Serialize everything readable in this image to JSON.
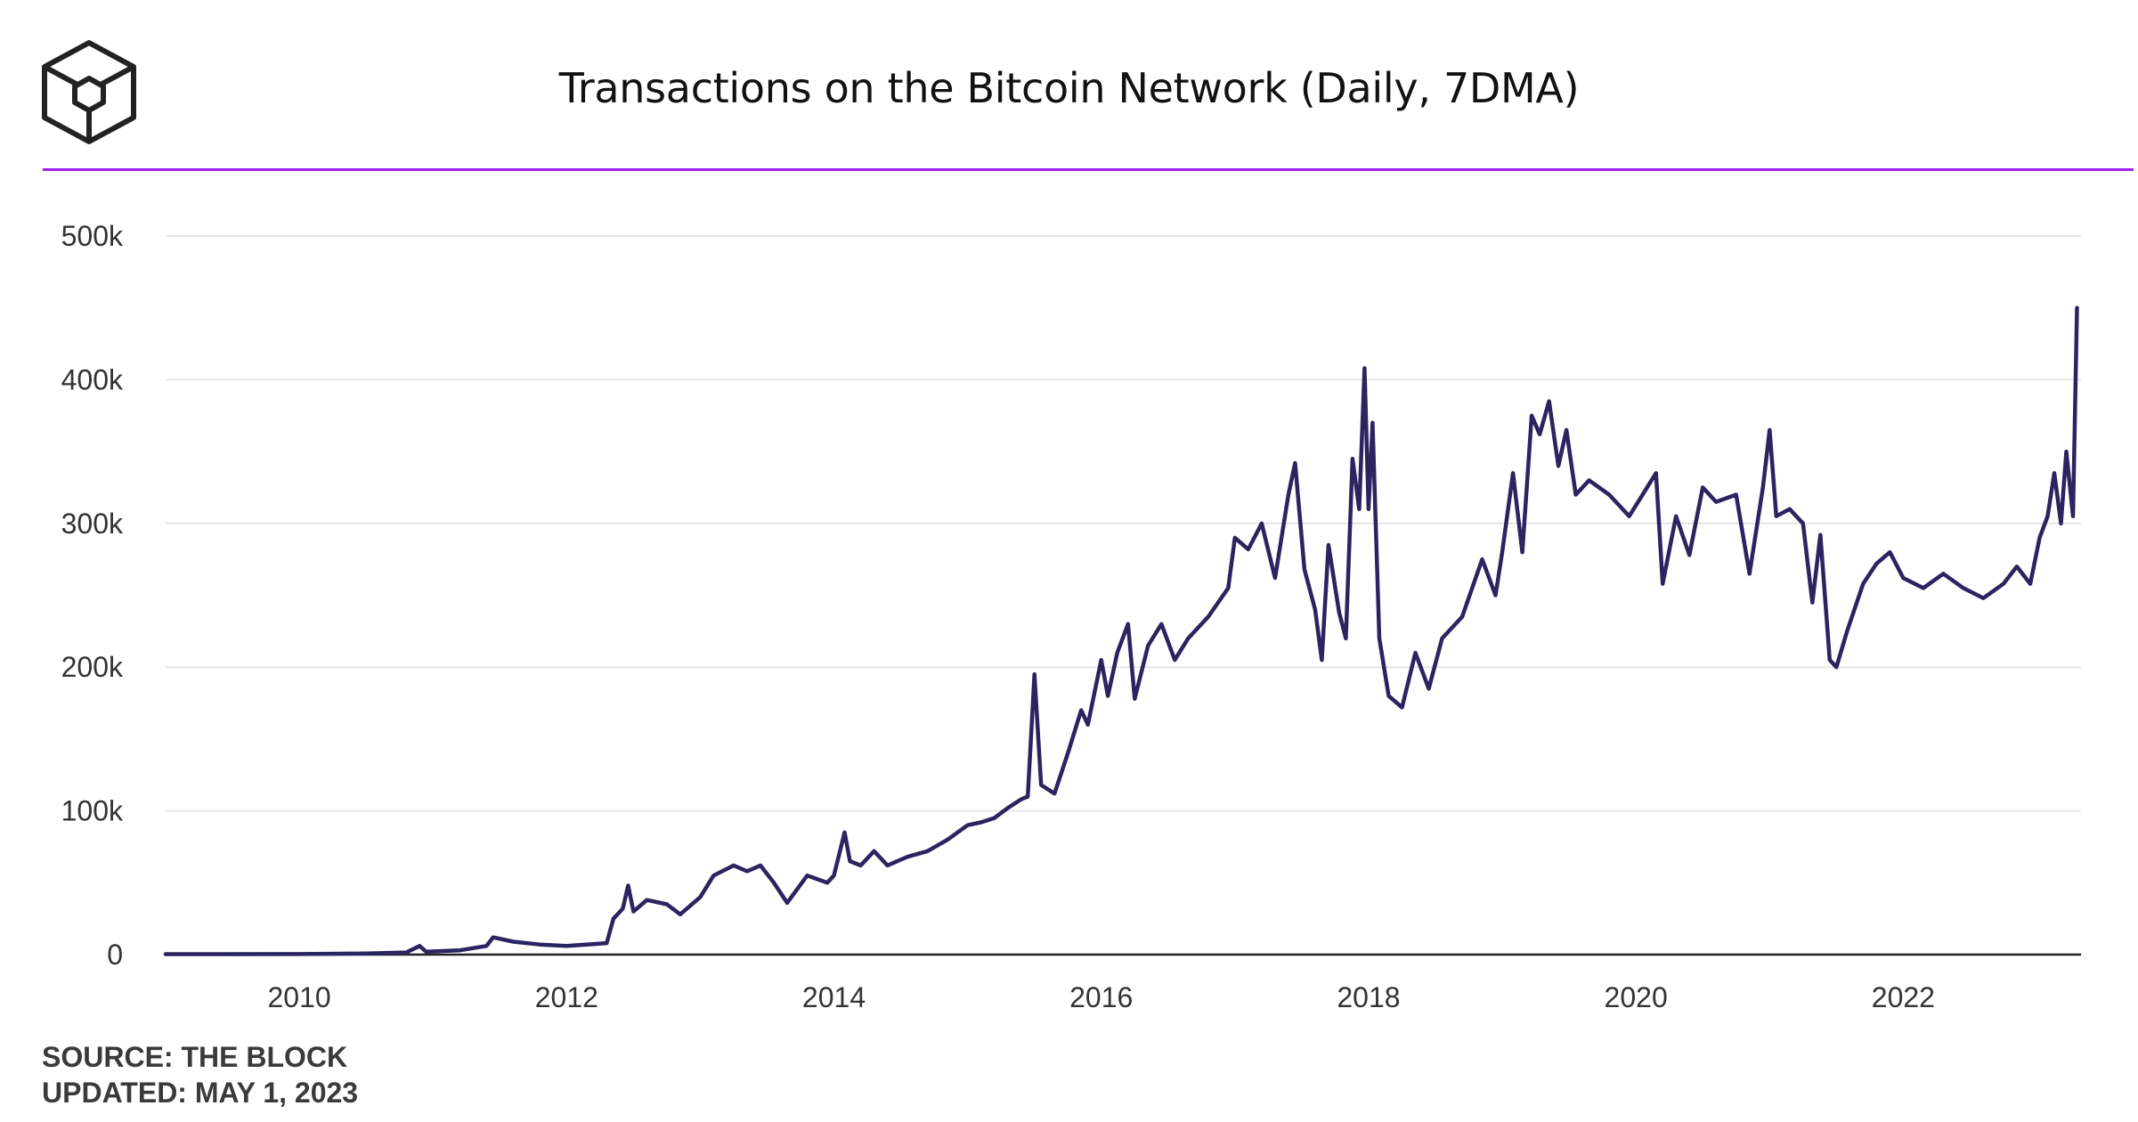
{
  "header": {
    "title": "Transactions on the Bitcoin Network (Daily, 7DMA)",
    "accent_color": "#a020f0",
    "logo_icon": "cube-icon"
  },
  "footer": {
    "source": "SOURCE: THE BLOCK",
    "updated": "UPDATED: MAY 1, 2023"
  },
  "chart_data": {
    "type": "line",
    "title": "Transactions on the Bitcoin Network (Daily, 7DMA)",
    "xlabel": "",
    "ylabel": "",
    "xlim": [
      2009.0,
      2023.33
    ],
    "ylim": [
      0,
      500000
    ],
    "grid": true,
    "line_color": "#2a2460",
    "y_ticks": [
      {
        "value": 0,
        "label": "0"
      },
      {
        "value": 100000,
        "label": "100k"
      },
      {
        "value": 200000,
        "label": "200k"
      },
      {
        "value": 300000,
        "label": "300k"
      },
      {
        "value": 400000,
        "label": "400k"
      },
      {
        "value": 500000,
        "label": "500k"
      }
    ],
    "x_ticks": [
      {
        "value": 2010,
        "label": "2010"
      },
      {
        "value": 2012,
        "label": "2012"
      },
      {
        "value": 2014,
        "label": "2014"
      },
      {
        "value": 2016,
        "label": "2016"
      },
      {
        "value": 2018,
        "label": "2018"
      },
      {
        "value": 2020,
        "label": "2020"
      },
      {
        "value": 2022,
        "label": "2022"
      }
    ],
    "series": [
      {
        "name": "Transactions (7DMA)",
        "points": [
          [
            2009.0,
            300
          ],
          [
            2010.0,
            400
          ],
          [
            2010.5,
            800
          ],
          [
            2010.8,
            1500
          ],
          [
            2010.9,
            6000
          ],
          [
            2010.95,
            2000
          ],
          [
            2011.2,
            3000
          ],
          [
            2011.4,
            6000
          ],
          [
            2011.45,
            12000
          ],
          [
            2011.6,
            9000
          ],
          [
            2011.8,
            7000
          ],
          [
            2012.0,
            6000
          ],
          [
            2012.15,
            7000
          ],
          [
            2012.3,
            8000
          ],
          [
            2012.35,
            25000
          ],
          [
            2012.42,
            32000
          ],
          [
            2012.46,
            48000
          ],
          [
            2012.5,
            30000
          ],
          [
            2012.6,
            38000
          ],
          [
            2012.75,
            35000
          ],
          [
            2012.85,
            28000
          ],
          [
            2013.0,
            40000
          ],
          [
            2013.1,
            55000
          ],
          [
            2013.25,
            62000
          ],
          [
            2013.35,
            58000
          ],
          [
            2013.45,
            62000
          ],
          [
            2013.55,
            50000
          ],
          [
            2013.65,
            36000
          ],
          [
            2013.8,
            55000
          ],
          [
            2013.95,
            50000
          ],
          [
            2014.0,
            55000
          ],
          [
            2014.08,
            85000
          ],
          [
            2014.12,
            65000
          ],
          [
            2014.2,
            62000
          ],
          [
            2014.3,
            72000
          ],
          [
            2014.4,
            62000
          ],
          [
            2014.55,
            68000
          ],
          [
            2014.7,
            72000
          ],
          [
            2014.85,
            80000
          ],
          [
            2015.0,
            90000
          ],
          [
            2015.1,
            92000
          ],
          [
            2015.2,
            95000
          ],
          [
            2015.3,
            102000
          ],
          [
            2015.4,
            108000
          ],
          [
            2015.45,
            110000
          ],
          [
            2015.5,
            195000
          ],
          [
            2015.55,
            118000
          ],
          [
            2015.65,
            112000
          ],
          [
            2015.75,
            140000
          ],
          [
            2015.85,
            170000
          ],
          [
            2015.9,
            160000
          ],
          [
            2016.0,
            205000
          ],
          [
            2016.05,
            180000
          ],
          [
            2016.12,
            210000
          ],
          [
            2016.2,
            230000
          ],
          [
            2016.25,
            178000
          ],
          [
            2016.35,
            215000
          ],
          [
            2016.45,
            230000
          ],
          [
            2016.55,
            205000
          ],
          [
            2016.65,
            220000
          ],
          [
            2016.8,
            235000
          ],
          [
            2016.95,
            255000
          ],
          [
            2017.0,
            290000
          ],
          [
            2017.1,
            282000
          ],
          [
            2017.2,
            300000
          ],
          [
            2017.3,
            262000
          ],
          [
            2017.4,
            320000
          ],
          [
            2017.45,
            342000
          ],
          [
            2017.52,
            268000
          ],
          [
            2017.6,
            240000
          ],
          [
            2017.65,
            205000
          ],
          [
            2017.7,
            285000
          ],
          [
            2017.78,
            238000
          ],
          [
            2017.83,
            220000
          ],
          [
            2017.88,
            345000
          ],
          [
            2017.93,
            310000
          ],
          [
            2017.97,
            408000
          ],
          [
            2018.0,
            310000
          ],
          [
            2018.03,
            370000
          ],
          [
            2018.08,
            220000
          ],
          [
            2018.15,
            180000
          ],
          [
            2018.25,
            172000
          ],
          [
            2018.35,
            210000
          ],
          [
            2018.45,
            185000
          ],
          [
            2018.55,
            220000
          ],
          [
            2018.7,
            235000
          ],
          [
            2018.85,
            275000
          ],
          [
            2018.95,
            250000
          ],
          [
            2019.0,
            280000
          ],
          [
            2019.08,
            335000
          ],
          [
            2019.15,
            280000
          ],
          [
            2019.22,
            375000
          ],
          [
            2019.28,
            362000
          ],
          [
            2019.35,
            385000
          ],
          [
            2019.42,
            340000
          ],
          [
            2019.48,
            365000
          ],
          [
            2019.55,
            320000
          ],
          [
            2019.65,
            330000
          ],
          [
            2019.8,
            320000
          ],
          [
            2019.95,
            305000
          ],
          [
            2020.05,
            320000
          ],
          [
            2020.15,
            335000
          ],
          [
            2020.2,
            258000
          ],
          [
            2020.3,
            305000
          ],
          [
            2020.4,
            278000
          ],
          [
            2020.5,
            325000
          ],
          [
            2020.6,
            315000
          ],
          [
            2020.75,
            320000
          ],
          [
            2020.85,
            265000
          ],
          [
            2020.95,
            325000
          ],
          [
            2021.0,
            365000
          ],
          [
            2021.05,
            305000
          ],
          [
            2021.15,
            310000
          ],
          [
            2021.25,
            300000
          ],
          [
            2021.32,
            245000
          ],
          [
            2021.38,
            292000
          ],
          [
            2021.45,
            205000
          ],
          [
            2021.5,
            200000
          ],
          [
            2021.58,
            225000
          ],
          [
            2021.7,
            258000
          ],
          [
            2021.8,
            272000
          ],
          [
            2021.9,
            280000
          ],
          [
            2022.0,
            262000
          ],
          [
            2022.15,
            255000
          ],
          [
            2022.3,
            265000
          ],
          [
            2022.45,
            255000
          ],
          [
            2022.6,
            248000
          ],
          [
            2022.75,
            258000
          ],
          [
            2022.85,
            270000
          ],
          [
            2022.95,
            258000
          ],
          [
            2023.02,
            290000
          ],
          [
            2023.08,
            305000
          ],
          [
            2023.13,
            335000
          ],
          [
            2023.18,
            300000
          ],
          [
            2023.22,
            350000
          ],
          [
            2023.27,
            305000
          ],
          [
            2023.3,
            450000
          ]
        ]
      }
    ]
  }
}
